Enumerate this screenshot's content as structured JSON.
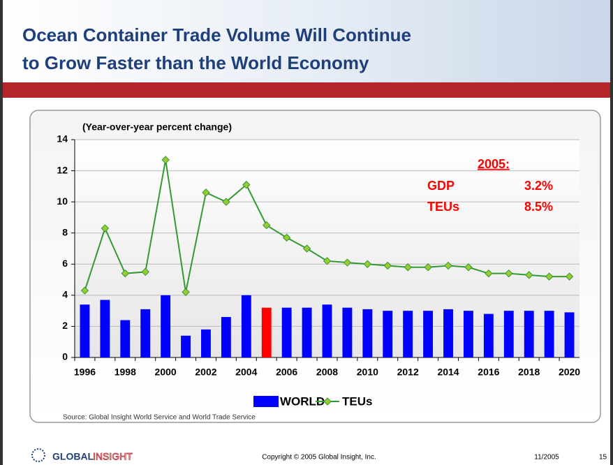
{
  "chart_data": {
    "type": "bar_line",
    "title": [
      "Ocean Container Trade Volume Will Continue",
      "to Grow Faster than the World Economy"
    ],
    "ylabel": "(Year-over-year percent change)",
    "categories": [
      "1996",
      null,
      "1998",
      null,
      "2000",
      null,
      "2002",
      null,
      "2004",
      null,
      "2006",
      null,
      "2008",
      null,
      "2010",
      null,
      "2012",
      null,
      "2014",
      null,
      "2016",
      null,
      "2018",
      null,
      "2020"
    ],
    "series": [
      {
        "name": "WORLD",
        "type": "bar",
        "color": "#0000ff",
        "colors": [
          "#0000ff",
          "#0000ff",
          "#0000ff",
          "#0000ff",
          "#0000ff",
          "#0000ff",
          "#0000ff",
          "#0000ff",
          "#0000ff",
          "#ff0000",
          "#0000ff",
          "#0000ff",
          "#0000ff",
          "#0000ff",
          "#0000ff",
          "#0000ff",
          "#0000ff",
          "#0000ff",
          "#0000ff",
          "#0000ff",
          "#0000ff",
          "#0000ff",
          "#0000ff",
          "#0000ff",
          "#0000ff"
        ],
        "values": [
          3.4,
          3.7,
          2.4,
          3.1,
          4.0,
          1.4,
          1.8,
          2.6,
          4.0,
          3.2,
          3.2,
          3.2,
          3.4,
          3.2,
          3.1,
          3.0,
          3.0,
          3.0,
          3.1,
          3.0,
          2.8,
          3.0,
          3.0,
          3.0,
          2.9
        ]
      },
      {
        "name": "TEUs",
        "type": "line",
        "color": "#339933",
        "marker_color": "#99cc33",
        "values": [
          4.3,
          8.3,
          5.4,
          5.5,
          12.7,
          4.2,
          10.6,
          10.0,
          11.1,
          8.5,
          7.7,
          7.0,
          6.2,
          6.1,
          6.0,
          5.9,
          5.8,
          5.8,
          5.9,
          5.8,
          5.4,
          5.4,
          5.3,
          5.2,
          5.2
        ]
      }
    ],
    "ylim": [
      0,
      14
    ],
    "yticks": [
      0,
      2,
      4,
      6,
      8,
      10,
      12,
      14
    ],
    "grid": true,
    "annotation": {
      "heading": "2005:",
      "rows": [
        [
          "GDP",
          "3.2%"
        ],
        [
          "TEUs",
          "8.5%"
        ]
      ],
      "color": "#ff0000"
    },
    "source": "Source: Global Insight World Service and World Trade Service"
  },
  "footer": {
    "logo": [
      "GLOBAL",
      "INSIGHT"
    ],
    "copyright": "Copyright © 2005 Global Insight, Inc.",
    "date": "11/2005",
    "page": "15"
  }
}
